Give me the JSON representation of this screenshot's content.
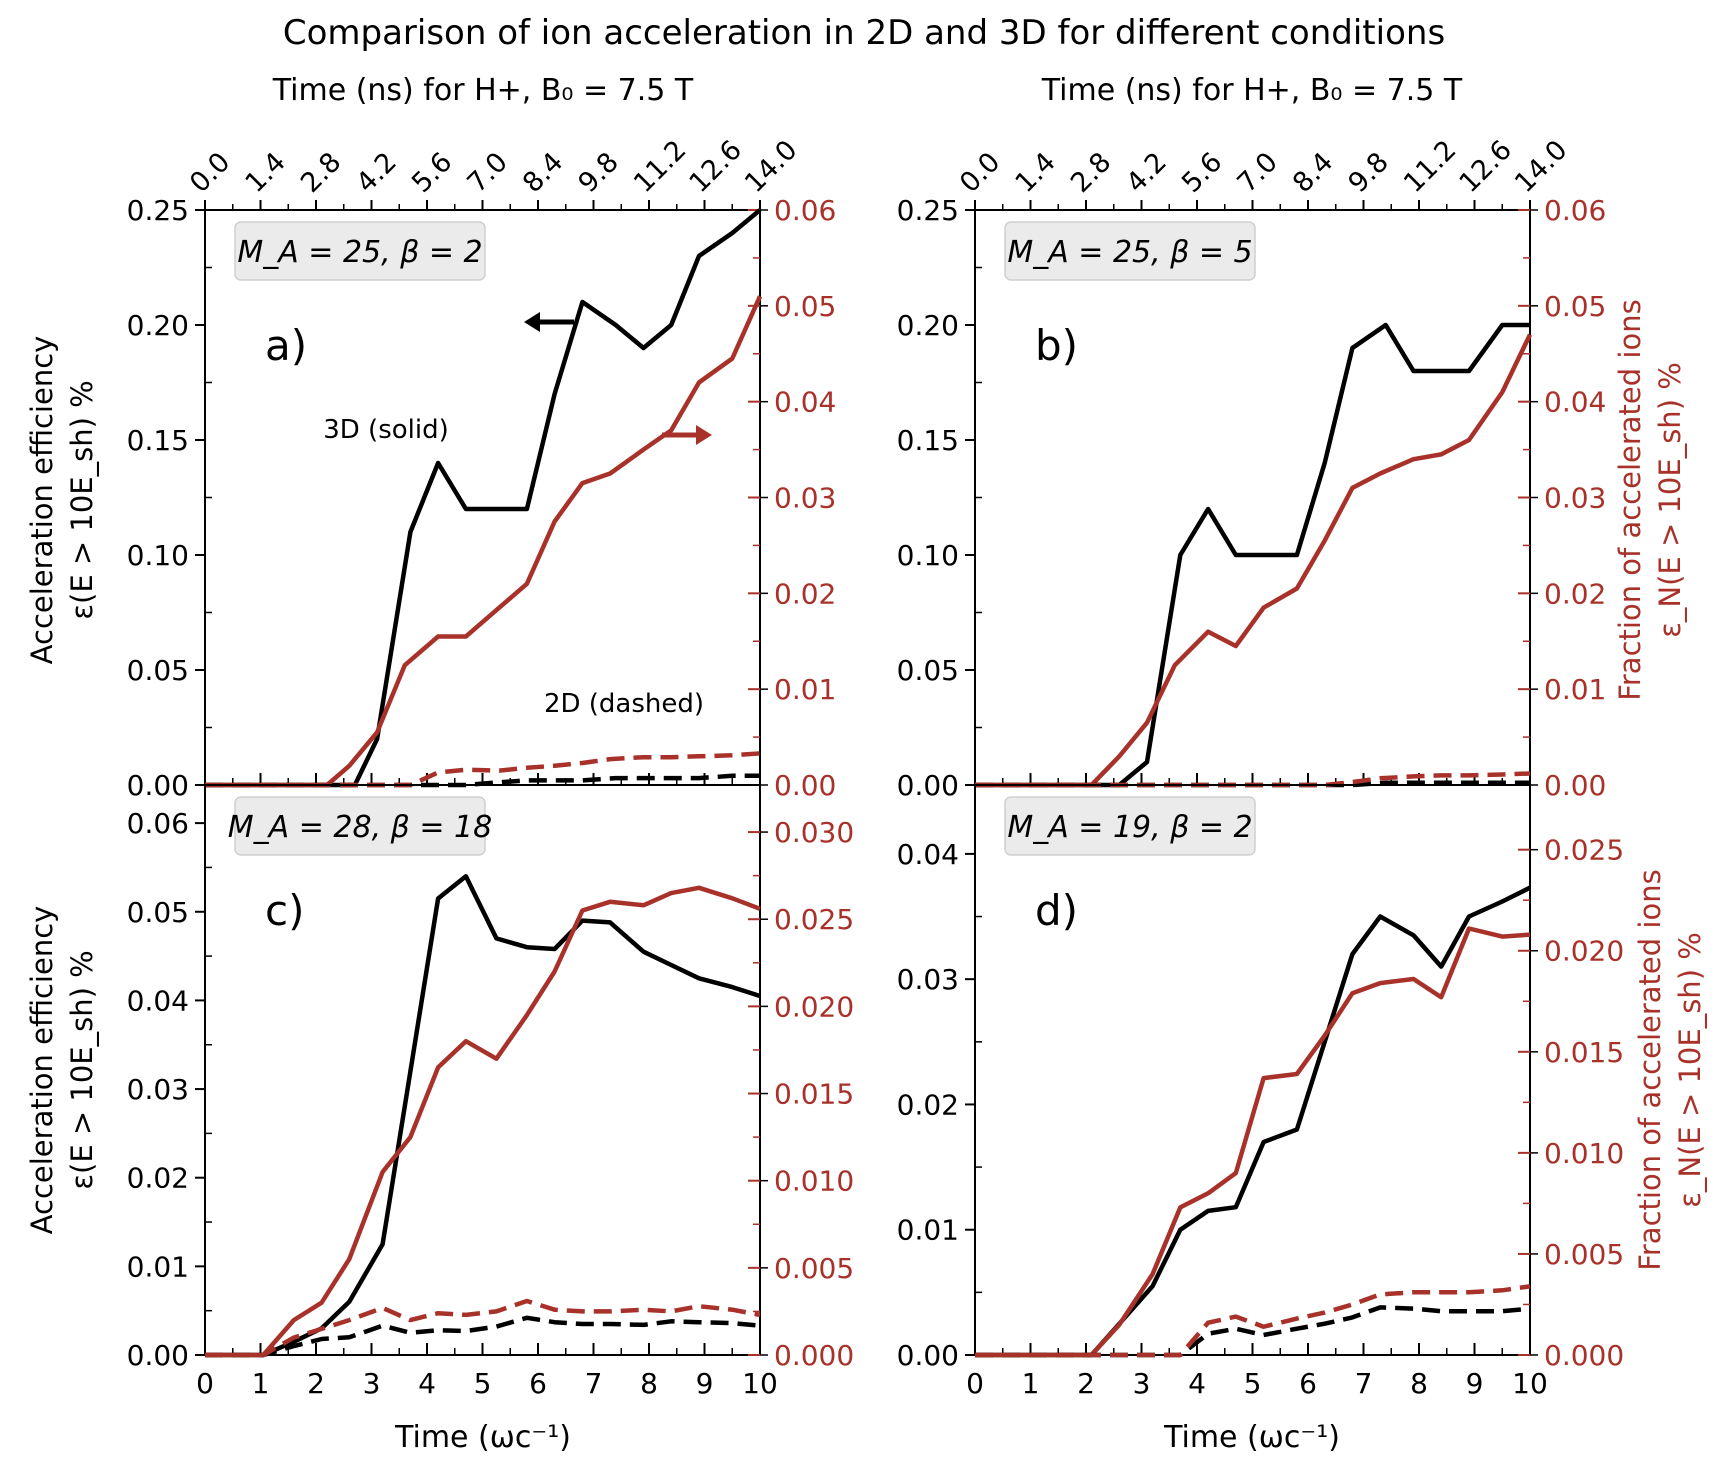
{
  "figure": {
    "title": "Comparison of ion acceleration in 2D and 3D for different conditions",
    "top_axis_label": "Time (ns) for H+, B₀ = 7.5 T",
    "top_ticks": [
      "0.0",
      "1.4",
      "2.8",
      "4.2",
      "5.6",
      "7.0",
      "8.4",
      "9.8",
      "11.2",
      "12.6",
      "14.0"
    ],
    "x_label": "Time (ωc⁻¹)",
    "left_label_line1": "Acceleration efficiency",
    "left_label_line2": "ε(E > 10E_sh) %",
    "right_label_line1": "Fraction of accelerated ions",
    "right_label_line2": "ε_N(E > 10E_sh) %",
    "annotation_3d": "3D (solid)",
    "annotation_2d": "2D (dashed)"
  },
  "colors": {
    "black": "#000000",
    "red": "#a8322a"
  },
  "chart_data": [
    {
      "id": "a",
      "type": "line",
      "panel_label": "a)",
      "condition": "M_A = 25, β = 2",
      "xlim": [
        0,
        10
      ],
      "ylim_left": [
        0,
        0.25
      ],
      "ylim_right": [
        0,
        0.06
      ],
      "left_ticks": [
        "0.00",
        "0.05",
        "0.10",
        "0.15",
        "0.20",
        "0.25"
      ],
      "right_ticks": [
        "0.00",
        "0.01",
        "0.02",
        "0.03",
        "0.04",
        "0.05",
        "0.06"
      ],
      "series": [
        {
          "name": "3D efficiency (left axis)",
          "style": "solid",
          "color": "black",
          "axis": "left",
          "x": [
            0,
            0.5,
            1,
            1.5,
            2,
            2.5,
            2.7,
            3.1,
            3.7,
            4.2,
            4.7,
            5.2,
            5.8,
            6.3,
            6.8,
            7.4,
            7.9,
            8.4,
            8.9,
            9.5,
            10
          ],
          "y": [
            0,
            0,
            0,
            0,
            0,
            0,
            0,
            0.02,
            0.11,
            0.14,
            0.12,
            0.12,
            0.12,
            0.17,
            0.21,
            0.2,
            0.19,
            0.2,
            0.23,
            0.24,
            0.25
          ]
        },
        {
          "name": "3D fraction (right axis)",
          "style": "solid",
          "color": "red",
          "axis": "right",
          "x": [
            0,
            0.5,
            1,
            1.5,
            2,
            2.2,
            2.6,
            3.1,
            3.6,
            4.2,
            4.7,
            5.3,
            5.8,
            6.3,
            6.8,
            7.3,
            7.9,
            8.4,
            8.9,
            9.5,
            10
          ],
          "y": [
            0,
            0,
            0,
            0,
            0,
            0,
            0.002,
            0.0055,
            0.0125,
            0.0155,
            0.0155,
            0.0185,
            0.021,
            0.0275,
            0.0315,
            0.0325,
            0.035,
            0.037,
            0.042,
            0.0445,
            0.051
          ]
        },
        {
          "name": "2D efficiency (left axis)",
          "style": "dashed",
          "color": "black",
          "axis": "left",
          "x": [
            0,
            1,
            2,
            3,
            3.7,
            4.2,
            4.7,
            5.2,
            5.8,
            6.3,
            6.8,
            7.4,
            7.9,
            8.4,
            8.9,
            9.5,
            10
          ],
          "y": [
            0,
            0,
            0,
            0,
            0,
            0,
            0,
            0.001,
            0.002,
            0.002,
            0.002,
            0.003,
            0.003,
            0.003,
            0.003,
            0.004,
            0.004
          ]
        },
        {
          "name": "2D fraction (right axis)",
          "style": "dashed",
          "color": "red",
          "axis": "right",
          "x": [
            0,
            1,
            2,
            3,
            3.7,
            4.2,
            4.7,
            5.3,
            5.8,
            6.3,
            6.8,
            7.3,
            7.9,
            8.4,
            8.9,
            9.5,
            10
          ],
          "y": [
            0,
            0,
            0,
            0,
            0,
            0.0013,
            0.0016,
            0.0015,
            0.0018,
            0.002,
            0.0023,
            0.0027,
            0.0029,
            0.0029,
            0.003,
            0.0031,
            0.0033
          ]
        }
      ]
    },
    {
      "id": "b",
      "type": "line",
      "panel_label": "b)",
      "condition": "M_A = 25, β = 5",
      "xlim": [
        0,
        10
      ],
      "ylim_left": [
        0,
        0.25
      ],
      "ylim_right": [
        0,
        0.06
      ],
      "left_ticks": [
        "0.00",
        "0.05",
        "0.10",
        "0.15",
        "0.20",
        "0.25"
      ],
      "right_ticks": [
        "0.00",
        "0.01",
        "0.02",
        "0.03",
        "0.04",
        "0.05",
        "0.06"
      ],
      "series": [
        {
          "name": "3D efficiency (left axis)",
          "style": "solid",
          "color": "black",
          "axis": "left",
          "x": [
            0,
            1,
            2,
            2.6,
            3.1,
            3.7,
            4.2,
            4.7,
            5.2,
            5.8,
            6.3,
            6.8,
            7.4,
            7.9,
            8.4,
            8.9,
            9.5,
            10
          ],
          "y": [
            0,
            0,
            0,
            0,
            0.01,
            0.1,
            0.12,
            0.1,
            0.1,
            0.1,
            0.14,
            0.19,
            0.2,
            0.18,
            0.18,
            0.18,
            0.2,
            0.2
          ]
        },
        {
          "name": "3D fraction (right axis)",
          "style": "solid",
          "color": "red",
          "axis": "right",
          "x": [
            0,
            1,
            2,
            2.1,
            2.6,
            3.1,
            3.6,
            4.2,
            4.7,
            5.2,
            5.8,
            6.3,
            6.8,
            7.3,
            7.9,
            8.4,
            8.9,
            9.5,
            10
          ],
          "y": [
            0,
            0,
            0,
            0,
            0.003,
            0.0065,
            0.0125,
            0.016,
            0.0145,
            0.0185,
            0.0205,
            0.0255,
            0.031,
            0.0325,
            0.034,
            0.0345,
            0.036,
            0.041,
            0.047
          ]
        },
        {
          "name": "2D efficiency (left axis)",
          "style": "dashed",
          "color": "black",
          "axis": "left",
          "x": [
            0,
            1,
            2,
            3,
            4,
            5,
            6,
            6.8,
            7.4,
            7.9,
            8.4,
            8.9,
            9.5,
            10
          ],
          "y": [
            0,
            0,
            0,
            0,
            0,
            0,
            0,
            0,
            0.001,
            0.001,
            0.001,
            0.001,
            0.001,
            0.001
          ]
        },
        {
          "name": "2D fraction (right axis)",
          "style": "dashed",
          "color": "red",
          "axis": "right",
          "x": [
            0,
            1,
            2,
            3,
            4,
            5,
            6,
            6.3,
            6.8,
            7.3,
            7.9,
            8.4,
            8.9,
            9.5,
            10
          ],
          "y": [
            0,
            0,
            0,
            0,
            0,
            0,
            0,
            0,
            0.0003,
            0.0007,
            0.0009,
            0.001,
            0.001,
            0.0011,
            0.0012
          ]
        }
      ]
    },
    {
      "id": "c",
      "type": "line",
      "panel_label": "c)",
      "condition": "M_A = 28, β = 18",
      "xlim": [
        0,
        10
      ],
      "ylim_left": [
        0,
        0.0643
      ],
      "ylim_right": [
        0,
        0.0327
      ],
      "left_ticks": [
        "0.00",
        "0.01",
        "0.02",
        "0.03",
        "0.04",
        "0.05",
        "0.06"
      ],
      "right_ticks": [
        "0.000",
        "0.005",
        "0.010",
        "0.015",
        "0.020",
        "0.025",
        "0.030"
      ],
      "series": [
        {
          "name": "3D efficiency (left axis)",
          "style": "solid",
          "color": "black",
          "axis": "left",
          "x": [
            0,
            1.05,
            1.6,
            2.1,
            2.6,
            3.2,
            3.7,
            4.2,
            4.7,
            5.25,
            5.8,
            6.3,
            6.8,
            7.3,
            7.9,
            8.4,
            8.9,
            9.5,
            10
          ],
          "y": [
            0,
            0,
            0.0015,
            0.003,
            0.006,
            0.0125,
            0.032,
            0.0515,
            0.054,
            0.047,
            0.046,
            0.0458,
            0.049,
            0.0488,
            0.0455,
            0.044,
            0.0425,
            0.0415,
            0.0405
          ]
        },
        {
          "name": "3D fraction (right axis)",
          "style": "solid",
          "color": "red",
          "axis": "right",
          "x": [
            0,
            1.05,
            1.6,
            2.1,
            2.6,
            3.2,
            3.7,
            4.2,
            4.7,
            5.25,
            5.8,
            6.3,
            6.8,
            7.3,
            7.9,
            8.4,
            8.9,
            9.5,
            10
          ],
          "y": [
            0,
            0,
            0.002,
            0.003,
            0.0055,
            0.0105,
            0.0125,
            0.0165,
            0.018,
            0.017,
            0.0195,
            0.022,
            0.0255,
            0.026,
            0.0258,
            0.0265,
            0.0268,
            0.0262,
            0.0256
          ]
        },
        {
          "name": "2D efficiency (left axis)",
          "style": "dashed",
          "color": "black",
          "axis": "left",
          "x": [
            0,
            1.05,
            1.6,
            2.1,
            2.6,
            3.2,
            3.7,
            4.2,
            4.7,
            5.25,
            5.8,
            6.3,
            6.8,
            7.3,
            7.9,
            8.4,
            8.9,
            9.5,
            10
          ],
          "y": [
            0,
            0,
            0.001,
            0.0018,
            0.002,
            0.0033,
            0.0025,
            0.0028,
            0.0027,
            0.0032,
            0.0042,
            0.0037,
            0.0035,
            0.0035,
            0.0034,
            0.0038,
            0.0037,
            0.0036,
            0.0033
          ]
        },
        {
          "name": "2D fraction (right axis)",
          "style": "dashed",
          "color": "red",
          "axis": "right",
          "x": [
            0,
            1.05,
            1.6,
            2.1,
            2.6,
            3.2,
            3.7,
            4.2,
            4.7,
            5.25,
            5.8,
            6.3,
            6.8,
            7.3,
            7.9,
            8.4,
            8.9,
            9.5,
            10
          ],
          "y": [
            0,
            0,
            0.001,
            0.0015,
            0.002,
            0.0027,
            0.002,
            0.0024,
            0.0023,
            0.0025,
            0.0031,
            0.0026,
            0.0025,
            0.0025,
            0.0026,
            0.0025,
            0.0028,
            0.0026,
            0.0023
          ]
        }
      ]
    },
    {
      "id": "d",
      "type": "line",
      "panel_label": "d)",
      "condition": "M_A = 19, β = 2",
      "xlim": [
        0,
        10
      ],
      "ylim_left": [
        0,
        0.0455
      ],
      "ylim_right": [
        0,
        0.0282
      ],
      "left_ticks": [
        "0.00",
        "0.01",
        "0.02",
        "0.03",
        "0.04"
      ],
      "right_ticks": [
        "0.000",
        "0.005",
        "0.010",
        "0.015",
        "0.020",
        "0.025"
      ],
      "series": [
        {
          "name": "3D efficiency (left axis)",
          "style": "solid",
          "color": "black",
          "axis": "left",
          "x": [
            0,
            1,
            2,
            2.1,
            2.6,
            3.2,
            3.7,
            4.2,
            4.7,
            5.2,
            5.8,
            6.3,
            6.8,
            7.3,
            7.9,
            8.4,
            8.9,
            9.5,
            10
          ],
          "y": [
            0,
            0,
            0,
            0,
            0.0025,
            0.0055,
            0.01,
            0.0115,
            0.0118,
            0.017,
            0.018,
            0.025,
            0.032,
            0.035,
            0.0335,
            0.031,
            0.035,
            0.0362,
            0.0373
          ]
        },
        {
          "name": "3D fraction (right axis)",
          "style": "solid",
          "color": "red",
          "axis": "right",
          "x": [
            0,
            1,
            2,
            2.1,
            2.6,
            3.2,
            3.7,
            4.2,
            4.7,
            5.2,
            5.8,
            6.3,
            6.8,
            7.3,
            7.9,
            8.4,
            8.9,
            9.5,
            10
          ],
          "y": [
            0,
            0,
            0,
            0,
            0.0015,
            0.004,
            0.0073,
            0.008,
            0.009,
            0.0137,
            0.0139,
            0.0158,
            0.0179,
            0.0184,
            0.0186,
            0.0177,
            0.0211,
            0.0207,
            0.0208
          ]
        },
        {
          "name": "2D efficiency (left axis)",
          "style": "dashed",
          "color": "black",
          "axis": "left",
          "x": [
            0,
            1,
            2,
            3,
            3.7,
            4.2,
            4.7,
            5.2,
            5.8,
            6.3,
            6.8,
            7.3,
            7.9,
            8.4,
            8.9,
            9.5,
            10
          ],
          "y": [
            0,
            0,
            0,
            0,
            0,
            0.0017,
            0.0021,
            0.0016,
            0.0021,
            0.0025,
            0.003,
            0.0038,
            0.0037,
            0.0035,
            0.0035,
            0.0035,
            0.0037
          ]
        },
        {
          "name": "2D fraction (right axis)",
          "style": "dashed",
          "color": "red",
          "axis": "right",
          "x": [
            0,
            1,
            2,
            3,
            3.3,
            3.7,
            4.2,
            4.7,
            5.2,
            5.8,
            6.3,
            6.8,
            7.3,
            7.9,
            8.4,
            8.9,
            9.5,
            10
          ],
          "y": [
            0,
            0,
            0,
            0,
            0,
            0,
            0.0016,
            0.0019,
            0.0014,
            0.0018,
            0.0021,
            0.0025,
            0.003,
            0.0031,
            0.0031,
            0.0031,
            0.0032,
            0.0034
          ]
        }
      ]
    }
  ]
}
